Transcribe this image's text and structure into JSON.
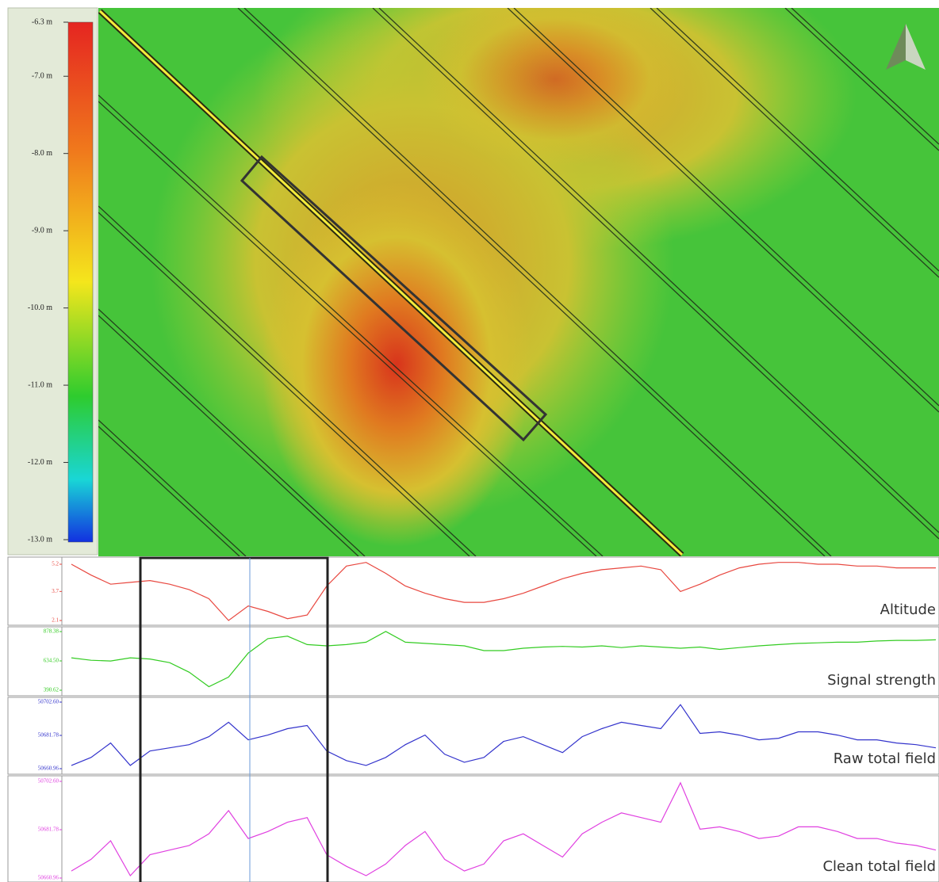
{
  "colorbar": {
    "ticks": [
      {
        "value": -6.3,
        "label": "-6.3 m"
      },
      {
        "value": -7.0,
        "label": "-7.0 m"
      },
      {
        "value": -8.0,
        "label": "-8.0 m"
      },
      {
        "value": -9.0,
        "label": "-9.0 m"
      },
      {
        "value": -10.0,
        "label": "-10.0 m"
      },
      {
        "value": -11.0,
        "label": "-11.0 m"
      },
      {
        "value": -12.0,
        "label": "-12.0 m"
      },
      {
        "value": -13.0,
        "label": "-13.0 m"
      }
    ]
  },
  "chart_data": [
    {
      "type": "line",
      "ylim": [
        2.1,
        5.2
      ],
      "yticks": [
        5.2,
        3.7,
        2.1
      ],
      "categories": [
        null,
        null,
        null,
        null,
        null,
        null,
        null,
        null,
        null,
        null,
        null,
        null,
        null,
        null,
        null,
        null,
        null,
        null,
        null,
        null,
        null,
        null,
        null,
        null,
        null,
        null,
        null,
        null,
        null,
        null,
        null,
        null,
        null,
        null,
        null,
        null,
        null,
        null,
        null,
        null,
        null,
        null,
        null,
        null,
        null
      ],
      "series": [
        {
          "name": "Altitude",
          "color": "#e8473f",
          "values": [
            5.2,
            4.6,
            4.1,
            4.2,
            4.3,
            4.1,
            3.8,
            3.3,
            2.1,
            2.9,
            2.6,
            2.2,
            2.4,
            4.0,
            5.1,
            5.3,
            4.7,
            4.0,
            3.6,
            3.3,
            3.1,
            3.1,
            3.3,
            3.6,
            4.0,
            4.4,
            4.7,
            4.9,
            5.0,
            5.1,
            4.9,
            3.7,
            4.1,
            4.6,
            5.0,
            5.2,
            5.3,
            5.3,
            5.2,
            5.2,
            5.1,
            5.1,
            5.0,
            5.0,
            5.0
          ]
        }
      ]
    },
    {
      "type": "line",
      "ylim": [
        390.62,
        878.38
      ],
      "yticks": [
        878.38,
        {
          "value": 634.5,
          "label": "634.50"
        },
        390.62
      ],
      "categories": [
        null,
        null,
        null,
        null,
        null,
        null,
        null,
        null,
        null,
        null,
        null,
        null,
        null,
        null,
        null,
        null,
        null,
        null,
        null,
        null,
        null,
        null,
        null,
        null,
        null,
        null,
        null,
        null,
        null,
        null,
        null,
        null,
        null,
        null,
        null,
        null,
        null,
        null,
        null,
        null,
        null,
        null,
        null,
        null,
        null
      ],
      "series": [
        {
          "name": "Signal strength",
          "color": "#33cc22",
          "values": [
            660,
            640,
            634,
            660,
            650,
            620,
            540,
            420,
            500,
            700,
            820,
            840,
            770,
            760,
            770,
            790,
            880,
            790,
            780,
            770,
            760,
            720,
            720,
            740,
            750,
            755,
            750,
            760,
            745,
            760,
            750,
            740,
            750,
            730,
            745,
            760,
            770,
            780,
            785,
            790,
            790,
            800,
            805,
            805,
            810
          ]
        }
      ]
    },
    {
      "type": "line",
      "ylim": [
        50660.96,
        50702.6
      ],
      "yticks": [
        {
          "value": 50702.6,
          "label": "50702.60"
        },
        50681.78,
        50660.96
      ],
      "categories": [
        null,
        null,
        null,
        null,
        null,
        null,
        null,
        null,
        null,
        null,
        null,
        null,
        null,
        null,
        null,
        null,
        null,
        null,
        null,
        null,
        null,
        null,
        null,
        null,
        null,
        null,
        null,
        null,
        null,
        null,
        null,
        null,
        null,
        null,
        null,
        null,
        null,
        null,
        null,
        null,
        null,
        null,
        null,
        null,
        null
      ],
      "series": [
        {
          "name": "Raw total field",
          "color": "#3333cc",
          "values": [
            50663,
            50668,
            50677,
            50663,
            50672,
            50674,
            50676,
            50681,
            50690,
            50679,
            50682,
            50686,
            50688,
            50672,
            50666,
            50663,
            50668,
            50676,
            50682,
            50670,
            50665,
            50668,
            50678,
            50681,
            50676,
            50671,
            50681,
            50686,
            50690,
            50688,
            50686,
            50701,
            50683,
            50684,
            50682,
            50679,
            50680,
            50684,
            50684,
            50682,
            50679,
            50679,
            50677,
            50676,
            50674
          ]
        }
      ]
    },
    {
      "type": "line",
      "ylim": [
        50660.96,
        50702.6
      ],
      "yticks": [
        {
          "value": 50702.6,
          "label": "50702.60"
        },
        50681.78,
        50660.96
      ],
      "categories": [
        null,
        null,
        null,
        null,
        null,
        null,
        null,
        null,
        null,
        null,
        null,
        null,
        null,
        null,
        null,
        null,
        null,
        null,
        null,
        null,
        null,
        null,
        null,
        null,
        null,
        null,
        null,
        null,
        null,
        null,
        null,
        null,
        null,
        null,
        null,
        null,
        null,
        null,
        null,
        null,
        null,
        null,
        null,
        null,
        null
      ],
      "series": [
        {
          "name": "Clean total field",
          "color": "#e040e0",
          "values": [
            50664,
            50669,
            50677,
            50662,
            50671,
            50673,
            50675,
            50680,
            50690,
            50678,
            50681,
            50685,
            50687,
            50671,
            50666,
            50662,
            50667,
            50675,
            50681,
            50669,
            50664,
            50667,
            50677,
            50680,
            50675,
            50670,
            50680,
            50685,
            50689,
            50687,
            50685,
            50702,
            50682,
            50683,
            50681,
            50678,
            50679,
            50683,
            50683,
            50681,
            50678,
            50678,
            50676,
            50675,
            50673
          ]
        }
      ]
    }
  ]
}
